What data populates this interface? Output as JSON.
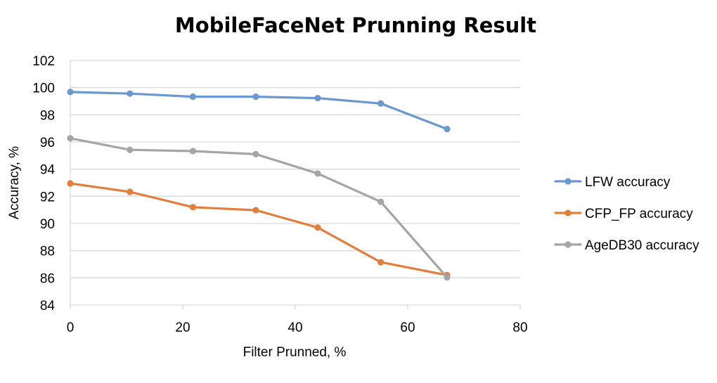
{
  "chart_data": {
    "type": "line",
    "title": "MobileFaceNet Prunning Result",
    "xlabel": "Filter Prunned, %",
    "ylabel": "Accuracy, %",
    "xlim": [
      0,
      80
    ],
    "ylim": [
      84,
      102
    ],
    "xticks": [
      "0",
      "20",
      "40",
      "60",
      "80"
    ],
    "yticks": [
      "84",
      "86",
      "88",
      "90",
      "92",
      "94",
      "96",
      "98",
      "100",
      "102"
    ],
    "grid": "horizontal",
    "legend_position": "right",
    "series": [
      {
        "name": "LFW accuracy",
        "color": "#6a98d0",
        "x": [
          0,
          10.6,
          21.8,
          33,
          44,
          55.2,
          67
        ],
        "y": [
          99.68,
          99.56,
          99.33,
          99.33,
          99.23,
          98.83,
          96.95
        ]
      },
      {
        "name": "CFP_FP accuracy",
        "color": "#e37f3a",
        "x": [
          0,
          10.6,
          21.8,
          33,
          44,
          55.2,
          67
        ],
        "y": [
          92.95,
          92.33,
          91.2,
          90.98,
          89.7,
          87.15,
          86.2
        ]
      },
      {
        "name": "AgeDB30 accuracy",
        "color": "#a5a5a5",
        "x": [
          0,
          10.6,
          21.8,
          33,
          44,
          55.2,
          67
        ],
        "y": [
          96.27,
          95.42,
          95.33,
          95.1,
          93.68,
          91.6,
          86.03
        ]
      }
    ]
  }
}
